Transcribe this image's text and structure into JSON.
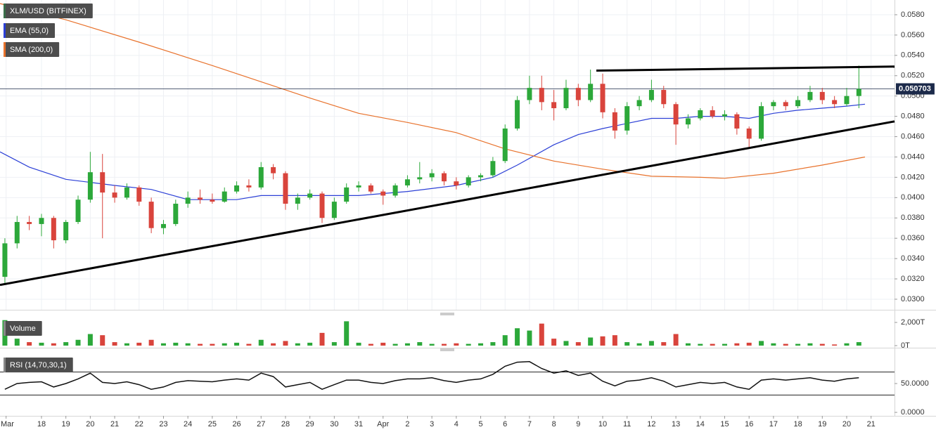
{
  "chart_data": [
    {
      "type": "candlestick",
      "title": "XLM/USD (BITFINEX)",
      "up_color": "#2ca83a",
      "down_color": "#d9443c",
      "x": [
        -0.5,
        0,
        0.5,
        1,
        1.5,
        2,
        2.5,
        3,
        3.5,
        4,
        4.5,
        5,
        5.5,
        6,
        6.5,
        7,
        7.5,
        8,
        8.5,
        9,
        9.5,
        10,
        10.5,
        11,
        11.5,
        12,
        12.5,
        13,
        13.5,
        14,
        14.5,
        15,
        15.5,
        16,
        16.5,
        17,
        17.5,
        18,
        18.5,
        19,
        19.5,
        20,
        20.5,
        21,
        21.5,
        22,
        22.5,
        23,
        23.5,
        24,
        24.5,
        25,
        25.5,
        26,
        26.5,
        27,
        27.5,
        28,
        28.5,
        29,
        29.5,
        30,
        30.5,
        31,
        31.5,
        32,
        32.5,
        33,
        33.5,
        34,
        34.5
      ],
      "open": [
        0.0322,
        0.0355,
        0.0376,
        0.0374,
        0.038,
        0.0358,
        0.0376,
        0.0398,
        0.0425,
        0.0405,
        0.04,
        0.041,
        0.0396,
        0.037,
        0.0374,
        0.0394,
        0.04,
        0.0398,
        0.0396,
        0.0406,
        0.0412,
        0.041,
        0.043,
        0.0424,
        0.0394,
        0.04,
        0.0404,
        0.038,
        0.0396,
        0.041,
        0.0412,
        0.0406,
        0.0402,
        0.0412,
        0.0418,
        0.042,
        0.0424,
        0.0416,
        0.0412,
        0.042,
        0.0422,
        0.0436,
        0.0468,
        0.0496,
        0.0508,
        0.0494,
        0.0488,
        0.0508,
        0.0496,
        0.0512,
        0.0484,
        0.0466,
        0.049,
        0.0496,
        0.0506,
        0.0492,
        0.0472,
        0.0478,
        0.0486,
        0.048,
        0.0482,
        0.0468,
        0.0458,
        0.049,
        0.0494,
        0.049,
        0.0496,
        0.0504,
        0.0496,
        0.0492,
        0.05
      ],
      "high": [
        0.036,
        0.0382,
        0.0382,
        0.0384,
        0.0382,
        0.0378,
        0.0402,
        0.0445,
        0.0443,
        0.0412,
        0.0414,
        0.0412,
        0.04,
        0.0378,
        0.0398,
        0.0406,
        0.0408,
        0.0404,
        0.041,
        0.0416,
        0.0418,
        0.0435,
        0.0433,
        0.0426,
        0.0404,
        0.0408,
        0.0406,
        0.04,
        0.0414,
        0.0416,
        0.0414,
        0.0408,
        0.0414,
        0.0422,
        0.0435,
        0.0428,
        0.0426,
        0.042,
        0.0422,
        0.0424,
        0.044,
        0.0472,
        0.05,
        0.052,
        0.052,
        0.0506,
        0.0516,
        0.0512,
        0.0526,
        0.0522,
        0.0488,
        0.0494,
        0.05,
        0.0516,
        0.051,
        0.0494,
        0.0482,
        0.0488,
        0.049,
        0.0486,
        0.0484,
        0.047,
        0.0494,
        0.0496,
        0.0496,
        0.05,
        0.051,
        0.0508,
        0.05,
        0.0508,
        0.053
      ],
      "low": [
        0.0314,
        0.035,
        0.0368,
        0.0362,
        0.035,
        0.0355,
        0.0374,
        0.0395,
        0.036,
        0.0395,
        0.0398,
        0.0392,
        0.0365,
        0.0364,
        0.0372,
        0.039,
        0.0394,
        0.0394,
        0.0395,
        0.0404,
        0.0406,
        0.0408,
        0.0418,
        0.0388,
        0.0388,
        0.0398,
        0.0375,
        0.0378,
        0.0394,
        0.0406,
        0.0404,
        0.0393,
        0.04,
        0.041,
        0.0414,
        0.0416,
        0.0412,
        0.0408,
        0.041,
        0.0416,
        0.042,
        0.0434,
        0.0466,
        0.0492,
        0.0486,
        0.0476,
        0.0486,
        0.049,
        0.0494,
        0.0478,
        0.0458,
        0.0462,
        0.0486,
        0.0494,
        0.0488,
        0.0452,
        0.0468,
        0.0476,
        0.0478,
        0.0476,
        0.0462,
        0.0448,
        0.0456,
        0.0486,
        0.0486,
        0.0488,
        0.0494,
        0.0492,
        0.0488,
        0.049,
        0.0488
      ],
      "close": [
        0.0355,
        0.0376,
        0.0374,
        0.038,
        0.0358,
        0.0376,
        0.0398,
        0.0425,
        0.0405,
        0.04,
        0.041,
        0.0396,
        0.037,
        0.0374,
        0.0394,
        0.04,
        0.0398,
        0.0396,
        0.0406,
        0.0412,
        0.041,
        0.043,
        0.0424,
        0.0394,
        0.04,
        0.0404,
        0.038,
        0.0396,
        0.041,
        0.0412,
        0.0406,
        0.0402,
        0.0412,
        0.0418,
        0.042,
        0.0424,
        0.0416,
        0.0412,
        0.042,
        0.0422,
        0.0436,
        0.0468,
        0.0496,
        0.0508,
        0.0494,
        0.0488,
        0.0508,
        0.0496,
        0.0512,
        0.0484,
        0.0466,
        0.049,
        0.0496,
        0.0506,
        0.0492,
        0.0472,
        0.0478,
        0.0486,
        0.048,
        0.0482,
        0.0468,
        0.0458,
        0.049,
        0.0494,
        0.049,
        0.0496,
        0.0504,
        0.0496,
        0.0492,
        0.05,
        0.0507
      ],
      "series": [
        {
          "name": "EMA (55,0)",
          "color": "#2b3fd6",
          "x": [
            -0.7,
            0.5,
            2,
            3,
            4,
            5.5,
            7,
            9,
            10,
            12,
            14,
            16,
            18,
            19.5,
            20.5,
            22,
            23,
            24,
            25,
            26,
            27,
            28,
            29,
            30,
            31,
            32,
            33,
            34,
            34.75
          ],
          "values": [
            0.0445,
            0.043,
            0.0418,
            0.0415,
            0.0412,
            0.0408,
            0.0398,
            0.0398,
            0.0402,
            0.0402,
            0.0402,
            0.0406,
            0.0412,
            0.042,
            0.0432,
            0.0452,
            0.0462,
            0.0468,
            0.0473,
            0.0478,
            0.0478,
            0.048,
            0.048,
            0.0478,
            0.0483,
            0.0486,
            0.0488,
            0.049,
            0.0492
          ]
        },
        {
          "name": "SMA (200,0)",
          "color": "#e8722c",
          "x": [
            -0.7,
            2,
            5,
            8,
            10,
            12,
            14,
            16,
            18,
            20,
            22,
            24,
            26,
            28,
            29,
            31,
            33,
            34.75
          ],
          "values": [
            0.0591,
            0.0575,
            0.0553,
            0.053,
            0.0514,
            0.0498,
            0.0483,
            0.0474,
            0.0464,
            0.0448,
            0.0436,
            0.0428,
            0.0421,
            0.042,
            0.0419,
            0.0424,
            0.0432,
            0.044
          ]
        }
      ],
      "trendlines": [
        {
          "x": [
            -0.7,
            35.96
          ],
          "y": [
            0.0314,
            0.0475
          ]
        },
        {
          "x": [
            23.74,
            35.96
          ],
          "y": [
            0.0525,
            0.0529
          ]
        }
      ],
      "last_price": 0.050703,
      "xlim": [
        -0.7,
        35.96
      ],
      "xticks": [
        {
          "value": -0.45,
          "label": "Mar"
        },
        {
          "value": 1,
          "label": "18"
        },
        {
          "value": 2,
          "label": "19"
        },
        {
          "value": 3,
          "label": "20"
        },
        {
          "value": 4,
          "label": "21"
        },
        {
          "value": 5,
          "label": "22"
        },
        {
          "value": 6,
          "label": "23"
        },
        {
          "value": 7,
          "label": "24"
        },
        {
          "value": 8,
          "label": "25"
        },
        {
          "value": 9,
          "label": "26"
        },
        {
          "value": 10,
          "label": "27"
        },
        {
          "value": 11,
          "label": "28"
        },
        {
          "value": 12,
          "label": "29"
        },
        {
          "value": 13,
          "label": "30"
        },
        {
          "value": 14,
          "label": "31"
        },
        {
          "value": 15,
          "label": "Apr"
        },
        {
          "value": 16,
          "label": "2"
        },
        {
          "value": 17,
          "label": "3"
        },
        {
          "value": 18,
          "label": "4"
        },
        {
          "value": 19,
          "label": "5"
        },
        {
          "value": 20,
          "label": "6"
        },
        {
          "value": 21,
          "label": "7"
        },
        {
          "value": 22,
          "label": "8"
        },
        {
          "value": 23,
          "label": "9"
        },
        {
          "value": 24,
          "label": "10"
        },
        {
          "value": 25,
          "label": "11"
        },
        {
          "value": 26,
          "label": "12"
        },
        {
          "value": 27,
          "label": "13"
        },
        {
          "value": 28,
          "label": "14"
        },
        {
          "value": 29,
          "label": "15"
        },
        {
          "value": 30,
          "label": "16"
        },
        {
          "value": 31,
          "label": "17"
        },
        {
          "value": 32,
          "label": "18"
        },
        {
          "value": 33,
          "label": "19"
        },
        {
          "value": 34,
          "label": "20"
        },
        {
          "value": 35,
          "label": "21"
        }
      ],
      "ylim": [
        0.02896,
        0.05945
      ],
      "yticks": [
        {
          "value": 0.03,
          "label": "0.0300"
        },
        {
          "value": 0.032,
          "label": "0.0320"
        },
        {
          "value": 0.034,
          "label": "0.0340"
        },
        {
          "value": 0.036,
          "label": "0.0360"
        },
        {
          "value": 0.038,
          "label": "0.0380"
        },
        {
          "value": 0.04,
          "label": "0.0400"
        },
        {
          "value": 0.042,
          "label": "0.0420"
        },
        {
          "value": 0.044,
          "label": "0.0440"
        },
        {
          "value": 0.046,
          "label": "0.0460"
        },
        {
          "value": 0.048,
          "label": "0.0480"
        },
        {
          "value": 0.05,
          "label": "0.0500"
        },
        {
          "value": 0.052,
          "label": "0.0520"
        },
        {
          "value": 0.054,
          "label": "0.0540"
        },
        {
          "value": 0.056,
          "label": "0.0560"
        },
        {
          "value": 0.058,
          "label": "0.0580"
        }
      ],
      "grid": true
    },
    {
      "type": "bar",
      "title": "Volume",
      "x": [
        -0.5,
        0,
        0.5,
        1,
        1.5,
        2,
        2.5,
        3,
        3.5,
        4,
        4.5,
        5,
        5.5,
        6,
        6.5,
        7,
        7.5,
        8,
        8.5,
        9,
        9.5,
        10,
        10.5,
        11,
        11.5,
        12,
        12.5,
        13,
        13.5,
        14,
        14.5,
        15,
        15.5,
        16,
        16.5,
        17,
        17.5,
        18,
        18.5,
        19,
        19.5,
        20,
        20.5,
        21,
        21.5,
        22,
        22.5,
        23,
        23.5,
        24,
        24.5,
        25,
        25.5,
        26,
        26.5,
        27,
        27.5,
        28,
        28.5,
        29,
        29.5,
        30,
        30.5,
        31,
        31.5,
        32,
        32.5,
        33,
        33.5,
        34,
        34.5
      ],
      "values": [
        2200,
        600,
        300,
        250,
        200,
        300,
        500,
        1000,
        900,
        300,
        200,
        250,
        500,
        200,
        250,
        200,
        150,
        150,
        200,
        250,
        150,
        500,
        200,
        400,
        200,
        250,
        1100,
        300,
        2100,
        250,
        150,
        250,
        150,
        200,
        300,
        150,
        150,
        200,
        150,
        200,
        300,
        900,
        1500,
        1300,
        1900,
        600,
        400,
        300,
        700,
        800,
        900,
        300,
        200,
        400,
        300,
        1000,
        200,
        150,
        150,
        150,
        200,
        250,
        400,
        200,
        150,
        150,
        200,
        150,
        100,
        200,
        300
      ],
      "ylim": [
        -120,
        2790
      ],
      "yticks": [
        {
          "value": 0,
          "label": "0T"
        },
        {
          "value": 2000,
          "label": "2,000T"
        }
      ]
    },
    {
      "type": "line",
      "title": "RSI (14,70,30,1)",
      "color": "#111111",
      "x": [
        -0.5,
        0,
        0.5,
        1,
        1.5,
        2,
        2.5,
        3,
        3.5,
        4,
        4.5,
        5,
        5.5,
        6,
        6.5,
        7,
        7.5,
        8,
        8.5,
        9,
        9.5,
        10,
        10.5,
        11,
        11.5,
        12,
        12.5,
        13,
        13.5,
        14,
        14.5,
        15,
        15.5,
        16,
        16.5,
        17,
        17.5,
        18,
        18.5,
        19,
        19.5,
        20,
        20.5,
        21,
        21.5,
        22,
        22.5,
        23,
        23.5,
        24,
        24.5,
        25,
        25.5,
        26,
        26.5,
        27,
        27.5,
        28,
        28.5,
        29,
        29.5,
        30,
        30.5,
        31,
        31.5,
        32,
        32.5,
        33,
        33.5,
        34,
        34.5
      ],
      "values": [
        40,
        50,
        52,
        53,
        44,
        50,
        58,
        68,
        52,
        50,
        53,
        48,
        40,
        44,
        52,
        55,
        54,
        53,
        56,
        58,
        56,
        68,
        62,
        44,
        48,
        52,
        40,
        48,
        56,
        56,
        52,
        50,
        55,
        58,
        58,
        60,
        55,
        52,
        56,
        58,
        66,
        80,
        87,
        88,
        76,
        68,
        72,
        64,
        68,
        54,
        46,
        54,
        56,
        60,
        54,
        44,
        48,
        52,
        50,
        52,
        44,
        40,
        56,
        58,
        56,
        58,
        60,
        56,
        54,
        58,
        60
      ],
      "levels": [
        30,
        70
      ],
      "ylim": [
        -6,
        106
      ],
      "yticks": [
        {
          "value": 0,
          "label": "0.0000"
        },
        {
          "value": 50,
          "label": "50.0000"
        }
      ]
    }
  ]
}
